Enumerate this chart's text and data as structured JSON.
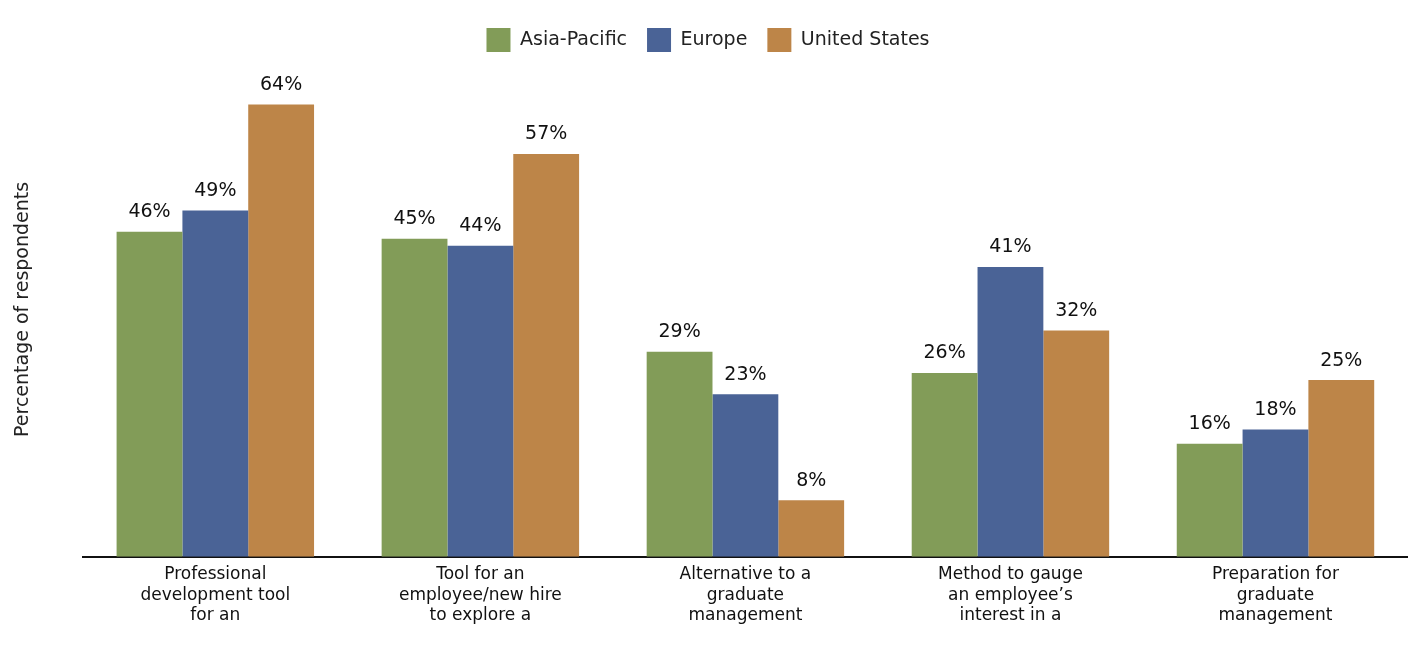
{
  "chart_data": {
    "type": "bar",
    "ylabel": "Percentage of respondents",
    "categories": [
      "Professional development tool for an",
      "Tool for an employee/new hire to explore a",
      "Alternative to a graduate management",
      "Method to gauge an employee’s interest in a",
      "Preparation for graduate management"
    ],
    "series": [
      {
        "name": "Asia-Pacific",
        "color": "#829c58",
        "values": [
          46,
          45,
          29,
          26,
          16
        ],
        "value_labels": [
          "46%",
          "45%",
          "29%",
          "26%",
          "16%"
        ]
      },
      {
        "name": "Europe",
        "color": "#4a6396",
        "values": [
          49,
          44,
          23,
          41,
          18
        ],
        "value_labels": [
          "49%",
          "44%",
          "23%",
          "41%",
          "18%"
        ]
      },
      {
        "name": "United States",
        "color": "#bd8548",
        "values": [
          64,
          57,
          8,
          32,
          25
        ],
        "value_labels": [
          "64%",
          "57%",
          "8%",
          "32%",
          "25%"
        ]
      }
    ],
    "tick_labels": "x",
    "grid": false,
    "legend": "top"
  }
}
